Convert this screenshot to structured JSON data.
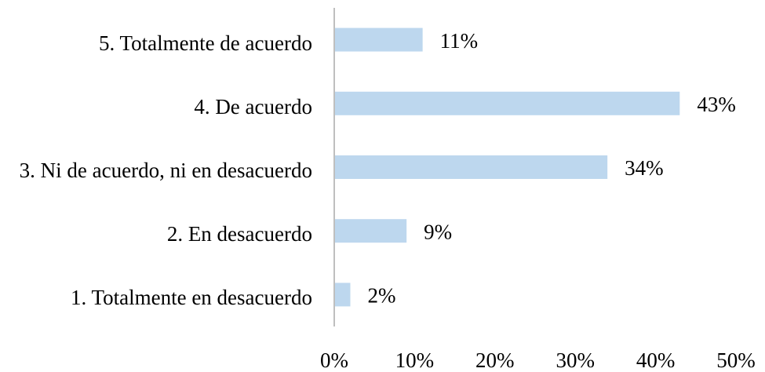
{
  "chart_data": {
    "type": "bar",
    "orientation": "horizontal",
    "categories": [
      "5. Totalmente de acuerdo",
      "4. De acuerdo",
      "3. Ni de acuerdo, ni en desacuerdo",
      "2. En desacuerdo",
      "1. Totalmente en desacuerdo"
    ],
    "values": [
      11,
      43,
      34,
      9,
      2
    ],
    "value_labels": [
      "11%",
      "43%",
      "34%",
      "9%",
      "2%"
    ],
    "color": "#bdd7ee",
    "xlim": [
      0,
      50
    ],
    "xticks": [
      {
        "value": 0,
        "label": "0%"
      },
      {
        "value": 10,
        "label": "10%"
      },
      {
        "value": 20,
        "label": "20%"
      },
      {
        "value": 30,
        "label": "30%"
      },
      {
        "value": 40,
        "label": "40%"
      },
      {
        "value": 50,
        "label": "50%"
      }
    ],
    "grid": false
  }
}
